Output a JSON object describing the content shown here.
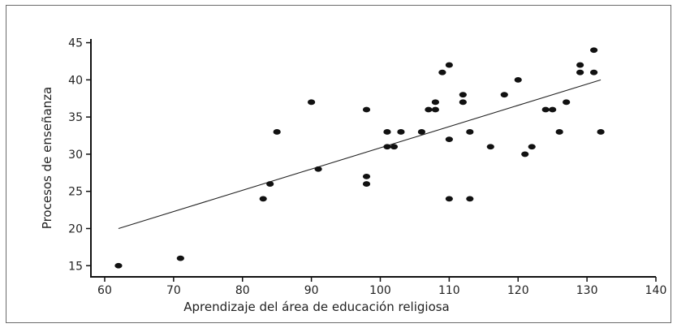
{
  "chart_data": {
    "type": "scatter",
    "title": "",
    "xlabel": "Aprendizaje del área de educación religiosa",
    "ylabel": "Procesos de enseñanza",
    "xlim": [
      58,
      140
    ],
    "ylim": [
      13.5,
      45.5
    ],
    "xticks": [
      60,
      70,
      80,
      90,
      100,
      110,
      120,
      130,
      140
    ],
    "yticks": [
      15,
      20,
      25,
      30,
      35,
      40,
      45
    ],
    "grid": false,
    "legend": "none",
    "colors": {
      "points": "#111111",
      "line": "#222222",
      "axis": "#111111"
    },
    "points": [
      {
        "x": 62,
        "y": 15
      },
      {
        "x": 71,
        "y": 16
      },
      {
        "x": 83,
        "y": 24
      },
      {
        "x": 84,
        "y": 26
      },
      {
        "x": 85,
        "y": 33
      },
      {
        "x": 90,
        "y": 37
      },
      {
        "x": 91,
        "y": 28
      },
      {
        "x": 98,
        "y": 36
      },
      {
        "x": 98,
        "y": 27
      },
      {
        "x": 98,
        "y": 26
      },
      {
        "x": 101,
        "y": 33
      },
      {
        "x": 101,
        "y": 31
      },
      {
        "x": 102,
        "y": 31
      },
      {
        "x": 103,
        "y": 33
      },
      {
        "x": 106,
        "y": 33
      },
      {
        "x": 107,
        "y": 36
      },
      {
        "x": 108,
        "y": 37
      },
      {
        "x": 108,
        "y": 36
      },
      {
        "x": 109,
        "y": 41
      },
      {
        "x": 110,
        "y": 42
      },
      {
        "x": 110,
        "y": 32
      },
      {
        "x": 110,
        "y": 24
      },
      {
        "x": 112,
        "y": 38
      },
      {
        "x": 112,
        "y": 37
      },
      {
        "x": 113,
        "y": 33
      },
      {
        "x": 113,
        "y": 24
      },
      {
        "x": 116,
        "y": 31
      },
      {
        "x": 118,
        "y": 38
      },
      {
        "x": 120,
        "y": 40
      },
      {
        "x": 121,
        "y": 30
      },
      {
        "x": 122,
        "y": 31
      },
      {
        "x": 124,
        "y": 36
      },
      {
        "x": 125,
        "y": 36
      },
      {
        "x": 126,
        "y": 33
      },
      {
        "x": 127,
        "y": 37
      },
      {
        "x": 129,
        "y": 42
      },
      {
        "x": 129,
        "y": 41
      },
      {
        "x": 131,
        "y": 44
      },
      {
        "x": 131,
        "y": 41
      },
      {
        "x": 132,
        "y": 33
      }
    ],
    "fit_line": [
      {
        "x": 62,
        "y": 20
      },
      {
        "x": 132,
        "y": 40
      }
    ]
  }
}
